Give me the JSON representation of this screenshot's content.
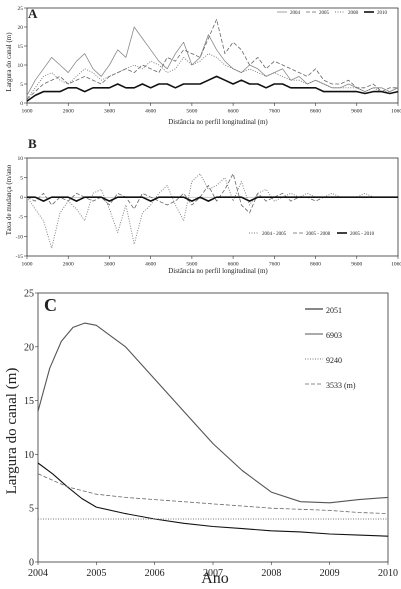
{
  "chart_data": [
    {
      "panel": "A",
      "type": "line",
      "xlabel": "Distância no perfil longitudinal (m)",
      "ylabel": "Largura do canal (m)",
      "xlim": [
        1600,
        10600
      ],
      "ylim": [
        0,
        25
      ],
      "xticks": [
        "1600",
        "2600",
        "3600",
        "4600",
        "5600",
        "6600",
        "7600",
        "8600",
        "9600",
        "10600"
      ],
      "yticks": [
        "0",
        "5",
        "10",
        "15",
        "20",
        "25"
      ],
      "legend_position": "top-right",
      "series": [
        {
          "name": "2004",
          "style": "thin-gray",
          "x": [
            1600,
            1800,
            2000,
            2200,
            2400,
            2600,
            2800,
            3000,
            3200,
            3400,
            3600,
            3800,
            4000,
            4200,
            4400,
            4600,
            4800,
            5000,
            5200,
            5400,
            5600,
            5800,
            6000,
            6200,
            6400,
            6600,
            6800,
            7000,
            7200,
            7400,
            7600,
            7800,
            8000,
            8200,
            8400,
            8600,
            8800,
            9000,
            9200,
            9400,
            9600,
            9800,
            10000,
            10200,
            10400,
            10600
          ],
          "y": [
            2,
            6,
            9,
            12,
            10,
            8,
            11,
            13,
            9,
            7,
            10,
            14,
            12,
            20,
            17,
            14,
            11,
            9,
            13,
            16,
            10,
            12,
            18,
            14,
            11,
            9,
            8,
            10,
            9,
            7,
            8,
            9,
            6,
            7,
            5,
            6,
            5,
            4,
            4,
            5,
            4,
            3,
            4,
            4,
            3,
            4
          ]
        },
        {
          "name": "2005",
          "style": "dash",
          "x": [
            1600,
            1800,
            2000,
            2200,
            2400,
            2600,
            2800,
            3000,
            3200,
            3400,
            3600,
            3800,
            4000,
            4200,
            4400,
            4600,
            4800,
            5000,
            5200,
            5400,
            5600,
            5800,
            6000,
            6200,
            6400,
            6600,
            6800,
            7000,
            7200,
            7400,
            7600,
            7800,
            8000,
            8200,
            8400,
            8600,
            8800,
            9000,
            9200,
            9400,
            9600,
            9800,
            10000,
            10200,
            10400,
            10600
          ],
          "y": [
            1,
            3,
            5,
            6,
            7,
            5,
            6,
            7,
            6,
            5,
            7,
            8,
            9,
            8,
            10,
            9,
            8,
            12,
            11,
            14,
            13,
            12,
            17,
            22,
            13,
            16,
            14,
            10,
            12,
            9,
            11,
            10,
            9,
            8,
            7,
            9,
            6,
            5,
            5,
            6,
            4,
            4,
            5,
            3,
            4,
            4
          ]
        },
        {
          "name": "2008",
          "style": "dot",
          "x": [
            1600,
            1800,
            2000,
            2200,
            2400,
            2600,
            2800,
            3000,
            3200,
            3400,
            3600,
            3800,
            4000,
            4200,
            4400,
            4600,
            4800,
            5000,
            5200,
            5400,
            5600,
            5800,
            6000,
            6200,
            6400,
            6600,
            6800,
            7000,
            7200,
            7400,
            7600,
            7800,
            8000,
            8200,
            8400,
            8600,
            8800,
            9000,
            9200,
            9400,
            9600,
            9800,
            10000,
            10200,
            10400,
            10600
          ],
          "y": [
            1,
            4,
            7,
            8,
            6,
            5,
            7,
            9,
            8,
            6,
            7,
            8,
            9,
            10,
            9,
            11,
            10,
            8,
            9,
            12,
            10,
            11,
            13,
            12,
            10,
            9,
            8,
            9,
            8,
            7,
            8,
            7,
            6,
            6,
            5,
            6,
            5,
            4,
            4,
            4,
            4,
            3,
            4,
            3,
            3,
            4
          ]
        },
        {
          "name": "2010",
          "style": "thick-black",
          "x": [
            1600,
            1800,
            2000,
            2200,
            2400,
            2600,
            2800,
            3000,
            3200,
            3400,
            3600,
            3800,
            4000,
            4200,
            4400,
            4600,
            4800,
            5000,
            5200,
            5400,
            5600,
            5800,
            6000,
            6200,
            6400,
            6600,
            6800,
            7000,
            7200,
            7400,
            7600,
            7800,
            8000,
            8200,
            8400,
            8600,
            8800,
            9000,
            9200,
            9400,
            9600,
            9800,
            10000,
            10200,
            10400,
            10600
          ],
          "y": [
            0.5,
            2,
            3,
            3,
            3,
            4,
            4,
            3,
            4,
            4,
            4,
            5,
            4,
            4,
            5,
            4,
            5,
            5,
            4,
            5,
            5,
            5,
            6,
            7,
            6,
            5,
            6,
            5,
            5,
            4,
            5,
            5,
            4,
            4,
            4,
            4,
            3,
            3,
            3,
            3,
            3,
            2.5,
            3,
            3,
            2.5,
            3
          ]
        }
      ]
    },
    {
      "panel": "B",
      "type": "line",
      "xlabel": "Distância no perfil longitudinal (m)",
      "ylabel": "Taxa de mudança (m/ano",
      "xlim": [
        1600,
        10600
      ],
      "ylim": [
        -15,
        10
      ],
      "xticks": [
        "1600",
        "2600",
        "3600",
        "4600",
        "5600",
        "6600",
        "7600",
        "8600",
        "9600",
        "10600"
      ],
      "yticks": [
        "-15",
        "-10",
        "-5",
        "0",
        "5",
        "10"
      ],
      "legend_position": "bottom-right",
      "series": [
        {
          "name": "2004 - 2005",
          "style": "dot",
          "x": [
            1600,
            1800,
            2000,
            2200,
            2400,
            2600,
            2800,
            3000,
            3200,
            3400,
            3600,
            3800,
            4000,
            4200,
            4400,
            4600,
            4800,
            5000,
            5200,
            5400,
            5600,
            5800,
            6000,
            6200,
            6400,
            6600,
            6800,
            7000,
            7200,
            7400,
            7600,
            7800,
            8000,
            8200,
            8400,
            8600,
            8800,
            9000,
            9200,
            9400,
            9600,
            9800,
            10000,
            10200,
            10400,
            10600
          ],
          "y": [
            0,
            -3,
            -6,
            -13,
            -4,
            -1,
            -3,
            -6,
            1,
            2,
            -3,
            -9,
            -2,
            -12,
            -4,
            -2,
            1,
            3,
            -2,
            -6,
            4,
            6,
            2,
            3,
            5,
            -1,
            4,
            -2,
            1,
            2,
            -1,
            0,
            1,
            0,
            1,
            0,
            0,
            1,
            0,
            0,
            0,
            1,
            0,
            0,
            0,
            0
          ]
        },
        {
          "name": "2005 - 2008",
          "style": "dash",
          "x": [
            1600,
            1800,
            2000,
            2200,
            2400,
            2600,
            2800,
            3000,
            3200,
            3400,
            3600,
            3800,
            4000,
            4200,
            4400,
            4600,
            4800,
            5000,
            5200,
            5400,
            5600,
            5800,
            6000,
            6200,
            6400,
            6600,
            6800,
            7000,
            7200,
            7400,
            7600,
            7800,
            8000,
            8200,
            8400,
            8600,
            8800,
            9000,
            9200,
            9400,
            9600,
            9800,
            10000,
            10200,
            10400,
            10600
          ],
          "y": [
            0,
            -1,
            1,
            -2,
            0,
            -1,
            1,
            0,
            -1,
            0,
            -2,
            1,
            0,
            -3,
            1,
            0,
            -1,
            -2,
            -1,
            1,
            -2,
            0,
            3,
            -1,
            2,
            6,
            -2,
            -4,
            1,
            -1,
            0,
            1,
            -1,
            0,
            0,
            -1,
            0,
            0,
            0,
            0,
            0,
            0,
            0,
            0,
            0,
            0
          ]
        },
        {
          "name": "2005 - 2010",
          "style": "thick-black",
          "x": [
            1600,
            1800,
            2000,
            2200,
            2400,
            2600,
            2800,
            3000,
            3200,
            3400,
            3600,
            3800,
            4000,
            4200,
            4400,
            4600,
            4800,
            5000,
            5200,
            5400,
            5600,
            5800,
            6000,
            6200,
            6400,
            6600,
            6800,
            7000,
            7200,
            7400,
            7600,
            7800,
            8000,
            8200,
            8400,
            8600,
            8800,
            9000,
            9200,
            9400,
            9600,
            9800,
            10000,
            10200,
            10400,
            10600
          ],
          "y": [
            0,
            0,
            -1,
            0,
            0,
            0,
            -1,
            0,
            0,
            0,
            -1,
            0,
            0,
            0,
            0,
            -1,
            0,
            0,
            0,
            0,
            -1,
            0,
            -1,
            0,
            0,
            0,
            0,
            -1,
            0,
            0,
            0,
            0,
            0,
            0,
            0,
            0,
            0,
            0,
            0,
            0,
            0,
            0,
            0,
            0,
            0,
            0
          ]
        }
      ]
    },
    {
      "panel": "C",
      "type": "line",
      "xlabel": "Ano",
      "ylabel": "Largura do canal (m)",
      "xlim": [
        2004,
        2010
      ],
      "ylim": [
        0,
        25
      ],
      "xticks": [
        "2004",
        "2005",
        "2006",
        "2007",
        "2008",
        "2009",
        "2010"
      ],
      "yticks": [
        "0",
        "5",
        "10",
        "15",
        "20",
        "25"
      ],
      "legend_position": "top-right",
      "series": [
        {
          "name": "2051",
          "style": "solid-black",
          "x": [
            2004,
            2004.25,
            2004.5,
            2004.75,
            2005,
            2005.5,
            2006,
            2006.5,
            2007,
            2007.5,
            2008,
            2008.5,
            2009,
            2009.5,
            2010
          ],
          "y": [
            9.2,
            8.2,
            7,
            5.9,
            5.1,
            4.5,
            4,
            3.6,
            3.3,
            3.1,
            2.9,
            2.8,
            2.6,
            2.5,
            2.4
          ]
        },
        {
          "name": "6903",
          "style": "solid-gray",
          "x": [
            2004,
            2004.2,
            2004.4,
            2004.6,
            2004.8,
            2005,
            2005.5,
            2006,
            2006.5,
            2007,
            2007.5,
            2008,
            2008.5,
            2009,
            2009.5,
            2010
          ],
          "y": [
            14,
            18,
            20.5,
            21.8,
            22.2,
            22,
            20,
            17,
            14,
            11,
            8.5,
            6.5,
            5.6,
            5.5,
            5.8,
            6
          ]
        },
        {
          "name": "9240",
          "style": "dot",
          "x": [
            2004,
            2005,
            2006,
            2007,
            2008,
            2009,
            2010
          ],
          "y": [
            4,
            4,
            4,
            4,
            4,
            4,
            4
          ]
        },
        {
          "name": "3533 (m)",
          "style": "dash",
          "x": [
            2004,
            2004.5,
            2005,
            2005.5,
            2006,
            2006.5,
            2007,
            2007.5,
            2008,
            2008.5,
            2009,
            2009.5,
            2010
          ],
          "y": [
            8.2,
            7,
            6.3,
            6,
            5.8,
            5.6,
            5.4,
            5.2,
            5,
            4.9,
            4.8,
            4.6,
            4.5
          ]
        }
      ]
    }
  ]
}
